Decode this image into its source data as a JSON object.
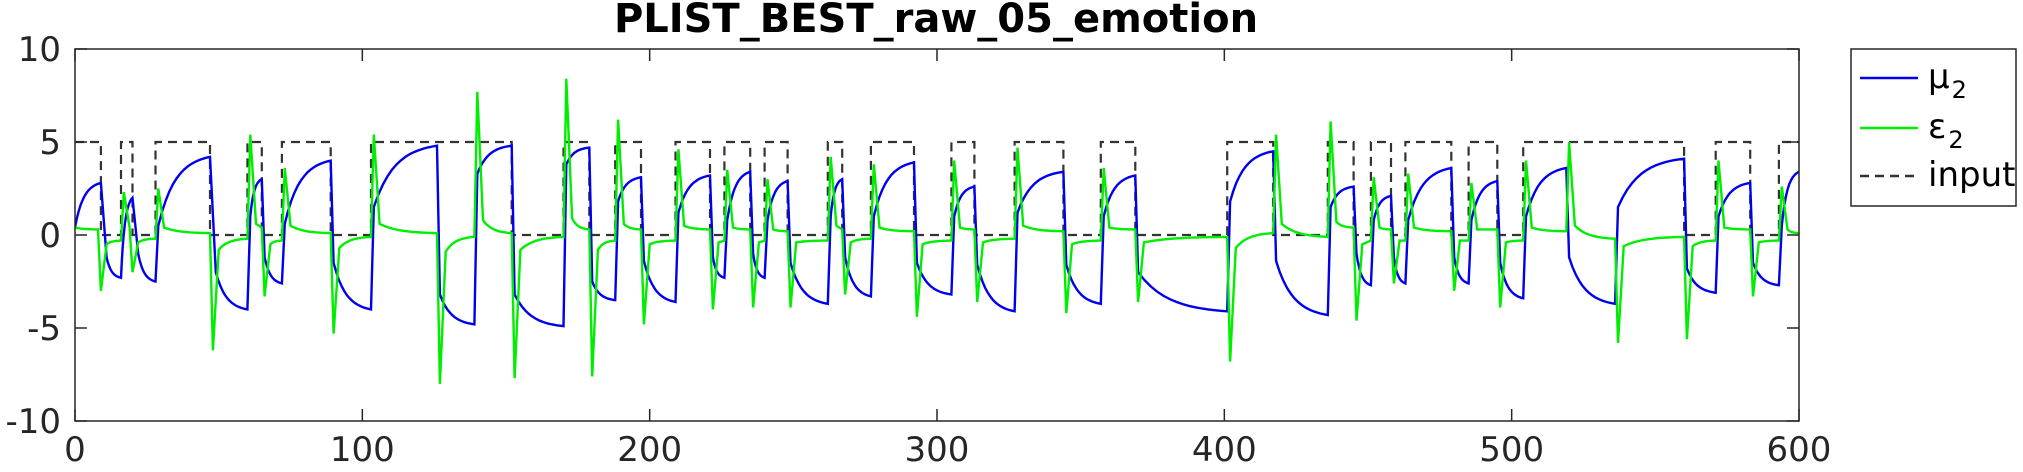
{
  "chart_data": {
    "type": "line",
    "title": "PLIST_BEST_raw_05_emotion",
    "xlabel": "",
    "ylabel": "",
    "xlim": [
      0,
      600
    ],
    "ylim": [
      -10,
      10
    ],
    "xticks": [
      0,
      100,
      200,
      300,
      400,
      500,
      600
    ],
    "yticks": [
      -10,
      -5,
      0,
      5,
      10
    ],
    "xtick_labels": [
      "0",
      "100",
      "200",
      "300",
      "400",
      "500",
      "600"
    ],
    "ytick_labels": [
      "-10",
      "-5",
      "0",
      "5",
      "10"
    ],
    "grid": false,
    "legend_position": "outside-right",
    "input_levels": {
      "high": 5,
      "low": 0
    },
    "input_segments": [
      [
        0,
        9,
        5
      ],
      [
        9,
        16,
        0
      ],
      [
        16,
        20,
        5
      ],
      [
        20,
        28,
        0
      ],
      [
        28,
        47,
        5
      ],
      [
        47,
        60,
        0
      ],
      [
        60,
        65,
        5
      ],
      [
        65,
        72,
        0
      ],
      [
        72,
        89,
        5
      ],
      [
        89,
        103,
        0
      ],
      [
        103,
        126,
        5
      ],
      [
        126,
        139,
        5
      ],
      [
        139,
        152,
        5
      ],
      [
        152,
        170,
        0
      ],
      [
        170,
        179,
        5
      ],
      [
        179,
        188,
        0
      ],
      [
        188,
        197,
        5
      ],
      [
        197,
        209,
        0
      ],
      [
        209,
        221,
        5
      ],
      [
        221,
        226,
        0
      ],
      [
        226,
        235,
        5
      ],
      [
        235,
        240,
        0
      ],
      [
        240,
        248,
        5
      ],
      [
        248,
        262,
        0
      ],
      [
        262,
        267,
        5
      ],
      [
        267,
        277,
        0
      ],
      [
        277,
        292,
        5
      ],
      [
        292,
        305,
        0
      ],
      [
        305,
        313,
        5
      ],
      [
        313,
        327,
        0
      ],
      [
        327,
        344,
        5
      ],
      [
        344,
        357,
        0
      ],
      [
        357,
        369,
        5
      ],
      [
        369,
        401,
        0
      ],
      [
        401,
        417,
        5
      ],
      [
        417,
        436,
        0
      ],
      [
        436,
        445,
        5
      ],
      [
        445,
        451,
        0
      ],
      [
        451,
        458,
        5
      ],
      [
        458,
        463,
        0
      ],
      [
        463,
        479,
        5
      ],
      [
        479,
        485,
        0
      ],
      [
        485,
        495,
        5
      ],
      [
        495,
        504,
        0
      ],
      [
        504,
        519,
        5
      ],
      [
        519,
        536,
        5
      ],
      [
        536,
        560,
        5
      ],
      [
        560,
        571,
        0
      ],
      [
        571,
        583,
        5
      ],
      [
        583,
        593,
        0
      ],
      [
        593,
        600,
        5
      ]
    ],
    "series": [
      {
        "name": "μ2",
        "color": "#0000ee",
        "style": "solid",
        "legend_main": "μ",
        "legend_sub": "2"
      },
      {
        "name": "ε2",
        "color": "#00ee00",
        "style": "solid",
        "legend_main": "ε",
        "legend_sub": "2"
      },
      {
        "name": "input",
        "color": "#333333",
        "style": "dashed",
        "legend_main": "input",
        "legend_sub": ""
      }
    ],
    "mu2_points": [
      [
        0,
        0.4
      ],
      [
        9,
        2.8
      ],
      [
        11,
        -1.2
      ],
      [
        16,
        -2.3
      ],
      [
        20,
        2.0
      ],
      [
        22,
        -1.0
      ],
      [
        28,
        -2.5
      ],
      [
        29,
        0.5
      ],
      [
        47,
        4.2
      ],
      [
        49,
        -2.0
      ],
      [
        60,
        -4.0
      ],
      [
        61,
        1.0
      ],
      [
        65,
        3.0
      ],
      [
        66,
        -1.2
      ],
      [
        72,
        -2.6
      ],
      [
        73,
        0.6
      ],
      [
        89,
        4.0
      ],
      [
        90,
        -1.5
      ],
      [
        103,
        -4.0
      ],
      [
        104,
        1.5
      ],
      [
        126,
        4.8
      ],
      [
        127,
        -3.2
      ],
      [
        139,
        -4.8
      ],
      [
        140,
        3.3
      ],
      [
        152,
        4.8
      ],
      [
        153,
        -3.2
      ],
      [
        170,
        -4.9
      ],
      [
        171,
        3.8
      ],
      [
        179,
        4.7
      ],
      [
        180,
        -2.5
      ],
      [
        188,
        -3.5
      ],
      [
        189,
        1.8
      ],
      [
        197,
        3.1
      ],
      [
        198,
        -1.4
      ],
      [
        209,
        -3.6
      ],
      [
        210,
        1.2
      ],
      [
        221,
        3.2
      ],
      [
        222,
        -1.2
      ],
      [
        226,
        -2.3
      ],
      [
        227,
        0.8
      ],
      [
        235,
        3.4
      ],
      [
        236,
        -1.0
      ],
      [
        240,
        -2.3
      ],
      [
        241,
        0.8
      ],
      [
        248,
        2.9
      ],
      [
        249,
        -1.5
      ],
      [
        262,
        -3.7
      ],
      [
        263,
        1.0
      ],
      [
        267,
        3.0
      ],
      [
        268,
        -1.2
      ],
      [
        277,
        -3.3
      ],
      [
        278,
        1.0
      ],
      [
        292,
        3.9
      ],
      [
        293,
        -1.5
      ],
      [
        305,
        -3.2
      ],
      [
        306,
        1.0
      ],
      [
        313,
        2.6
      ],
      [
        314,
        -1.6
      ],
      [
        327,
        -4.1
      ],
      [
        328,
        1.2
      ],
      [
        344,
        3.4
      ],
      [
        345,
        -1.6
      ],
      [
        357,
        -3.7
      ],
      [
        358,
        1.0
      ],
      [
        369,
        3.2
      ],
      [
        370,
        -2.0
      ],
      [
        401,
        -4.1
      ],
      [
        402,
        1.8
      ],
      [
        417,
        4.5
      ],
      [
        418,
        -1.4
      ],
      [
        436,
        -4.3
      ],
      [
        437,
        1.5
      ],
      [
        445,
        2.6
      ],
      [
        446,
        -1.0
      ],
      [
        451,
        -2.7
      ],
      [
        452,
        0.8
      ],
      [
        458,
        2.1
      ],
      [
        459,
        -1.2
      ],
      [
        463,
        -2.6
      ],
      [
        464,
        0.8
      ],
      [
        479,
        3.6
      ],
      [
        480,
        -1.2
      ],
      [
        485,
        -2.6
      ],
      [
        486,
        0.8
      ],
      [
        495,
        2.9
      ],
      [
        496,
        -1.5
      ],
      [
        504,
        -3.4
      ],
      [
        505,
        1.0
      ],
      [
        519,
        3.6
      ],
      [
        520,
        -1.2
      ],
      [
        536,
        -3.7
      ],
      [
        537,
        1.5
      ],
      [
        560,
        4.1
      ],
      [
        561,
        -1.8
      ],
      [
        571,
        -3.1
      ],
      [
        572,
        1.0
      ],
      [
        583,
        2.8
      ],
      [
        584,
        -1.5
      ],
      [
        593,
        -2.7
      ],
      [
        594,
        0.5
      ],
      [
        600,
        3.4
      ]
    ],
    "eps2_points": [
      [
        0,
        0.4
      ],
      [
        8,
        0.3
      ],
      [
        9,
        -3.0
      ],
      [
        11,
        -0.5
      ],
      [
        16,
        -0.3
      ],
      [
        17,
        2.3
      ],
      [
        19,
        0.4
      ],
      [
        20,
        -2.0
      ],
      [
        22,
        -0.4
      ],
      [
        28,
        -0.2
      ],
      [
        29,
        2.5
      ],
      [
        31,
        0.4
      ],
      [
        47,
        0.1
      ],
      [
        48,
        -6.2
      ],
      [
        50,
        -0.8
      ],
      [
        60,
        -0.2
      ],
      [
        61,
        5.4
      ],
      [
        63,
        0.6
      ],
      [
        65,
        0.4
      ],
      [
        66,
        -3.3
      ],
      [
        68,
        -0.5
      ],
      [
        72,
        -0.3
      ],
      [
        73,
        3.6
      ],
      [
        75,
        0.5
      ],
      [
        89,
        0.1
      ],
      [
        90,
        -5.3
      ],
      [
        92,
        -0.7
      ],
      [
        103,
        -0.1
      ],
      [
        104,
        5.4
      ],
      [
        106,
        0.6
      ],
      [
        126,
        0.1
      ],
      [
        127,
        -8.0
      ],
      [
        129,
        -0.9
      ],
      [
        139,
        -0.1
      ],
      [
        140,
        7.7
      ],
      [
        142,
        0.8
      ],
      [
        152,
        0.1
      ],
      [
        153,
        -7.7
      ],
      [
        155,
        -0.8
      ],
      [
        170,
        -0.1
      ],
      [
        171,
        8.4
      ],
      [
        173,
        0.9
      ],
      [
        179,
        0.3
      ],
      [
        180,
        -7.6
      ],
      [
        182,
        -0.8
      ],
      [
        188,
        -0.3
      ],
      [
        189,
        6.2
      ],
      [
        191,
        0.6
      ],
      [
        197,
        0.3
      ],
      [
        198,
        -4.8
      ],
      [
        200,
        -0.5
      ],
      [
        209,
        -0.3
      ],
      [
        210,
        4.6
      ],
      [
        212,
        0.5
      ],
      [
        221,
        0.3
      ],
      [
        222,
        -4.0
      ],
      [
        224,
        -0.4
      ],
      [
        226,
        -0.3
      ],
      [
        227,
        3.5
      ],
      [
        229,
        0.4
      ],
      [
        235,
        0.3
      ],
      [
        236,
        -3.9
      ],
      [
        238,
        -0.4
      ],
      [
        240,
        -0.3
      ],
      [
        241,
        3.0
      ],
      [
        243,
        0.3
      ],
      [
        248,
        0.2
      ],
      [
        249,
        -3.9
      ],
      [
        251,
        -0.4
      ],
      [
        262,
        -0.3
      ],
      [
        263,
        4.2
      ],
      [
        265,
        0.5
      ],
      [
        267,
        0.3
      ],
      [
        268,
        -3.2
      ],
      [
        270,
        -0.4
      ],
      [
        277,
        -0.2
      ],
      [
        278,
        3.8
      ],
      [
        280,
        0.4
      ],
      [
        292,
        0.2
      ],
      [
        293,
        -4.4
      ],
      [
        295,
        -0.5
      ],
      [
        305,
        -0.3
      ],
      [
        306,
        4.0
      ],
      [
        308,
        0.4
      ],
      [
        313,
        0.3
      ],
      [
        314,
        -3.6
      ],
      [
        316,
        -0.4
      ],
      [
        327,
        -0.2
      ],
      [
        328,
        4.7
      ],
      [
        330,
        0.5
      ],
      [
        344,
        0.2
      ],
      [
        345,
        -4.2
      ],
      [
        347,
        -0.5
      ],
      [
        357,
        -0.3
      ],
      [
        358,
        3.6
      ],
      [
        360,
        0.4
      ],
      [
        369,
        0.3
      ],
      [
        370,
        -3.6
      ],
      [
        372,
        -0.4
      ],
      [
        401,
        -0.1
      ],
      [
        402,
        -6.8
      ],
      [
        404,
        -0.7
      ],
      [
        417,
        0.1
      ],
      [
        418,
        5.4
      ],
      [
        420,
        0.6
      ],
      [
        436,
        -0.1
      ],
      [
        437,
        6.1
      ],
      [
        439,
        0.7
      ],
      [
        445,
        0.4
      ],
      [
        446,
        -4.6
      ],
      [
        448,
        -0.5
      ],
      [
        451,
        -0.3
      ],
      [
        452,
        3.1
      ],
      [
        454,
        0.4
      ],
      [
        458,
        0.3
      ],
      [
        459,
        -2.6
      ],
      [
        461,
        -0.3
      ],
      [
        463,
        -0.3
      ],
      [
        464,
        3.3
      ],
      [
        466,
        0.4
      ],
      [
        479,
        0.2
      ],
      [
        480,
        -3.0
      ],
      [
        482,
        -0.3
      ],
      [
        485,
        -0.3
      ],
      [
        486,
        2.8
      ],
      [
        488,
        0.3
      ],
      [
        495,
        0.3
      ],
      [
        496,
        -3.9
      ],
      [
        498,
        -0.4
      ],
      [
        504,
        -0.3
      ],
      [
        505,
        4.0
      ],
      [
        507,
        0.4
      ],
      [
        519,
        0.2
      ],
      [
        520,
        5.0
      ],
      [
        522,
        0.5
      ],
      [
        536,
        -0.2
      ],
      [
        537,
        -5.8
      ],
      [
        539,
        -0.6
      ],
      [
        560,
        -0.1
      ],
      [
        561,
        -5.6
      ],
      [
        563,
        -0.6
      ],
      [
        571,
        -0.3
      ],
      [
        572,
        4.0
      ],
      [
        574,
        0.4
      ],
      [
        583,
        0.3
      ],
      [
        584,
        -3.3
      ],
      [
        586,
        -0.4
      ],
      [
        593,
        -0.3
      ],
      [
        594,
        2.6
      ],
      [
        596,
        0.3
      ],
      [
        600,
        0.1
      ]
    ]
  }
}
